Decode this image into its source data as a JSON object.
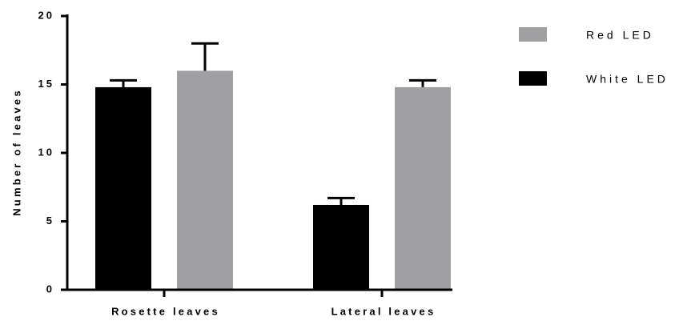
{
  "chart_data": {
    "type": "bar",
    "ylabel": "Number of leaves",
    "ylim": [
      0,
      20
    ],
    "yticks": [
      0,
      5,
      10,
      15,
      20
    ],
    "categories": [
      "Rosette leaves",
      "Lateral leaves"
    ],
    "series": [
      {
        "name": "White LED",
        "color": "#000000",
        "values": [
          14.8,
          6.2
        ],
        "errors": [
          0.5,
          0.5
        ]
      },
      {
        "name": "Red LED",
        "color": "#a0a0a3",
        "values": [
          16.0,
          14.8
        ],
        "errors": [
          2.0,
          0.5
        ]
      }
    ],
    "legend_order": [
      1,
      0
    ],
    "legend_position": "top-right",
    "grid": false
  }
}
